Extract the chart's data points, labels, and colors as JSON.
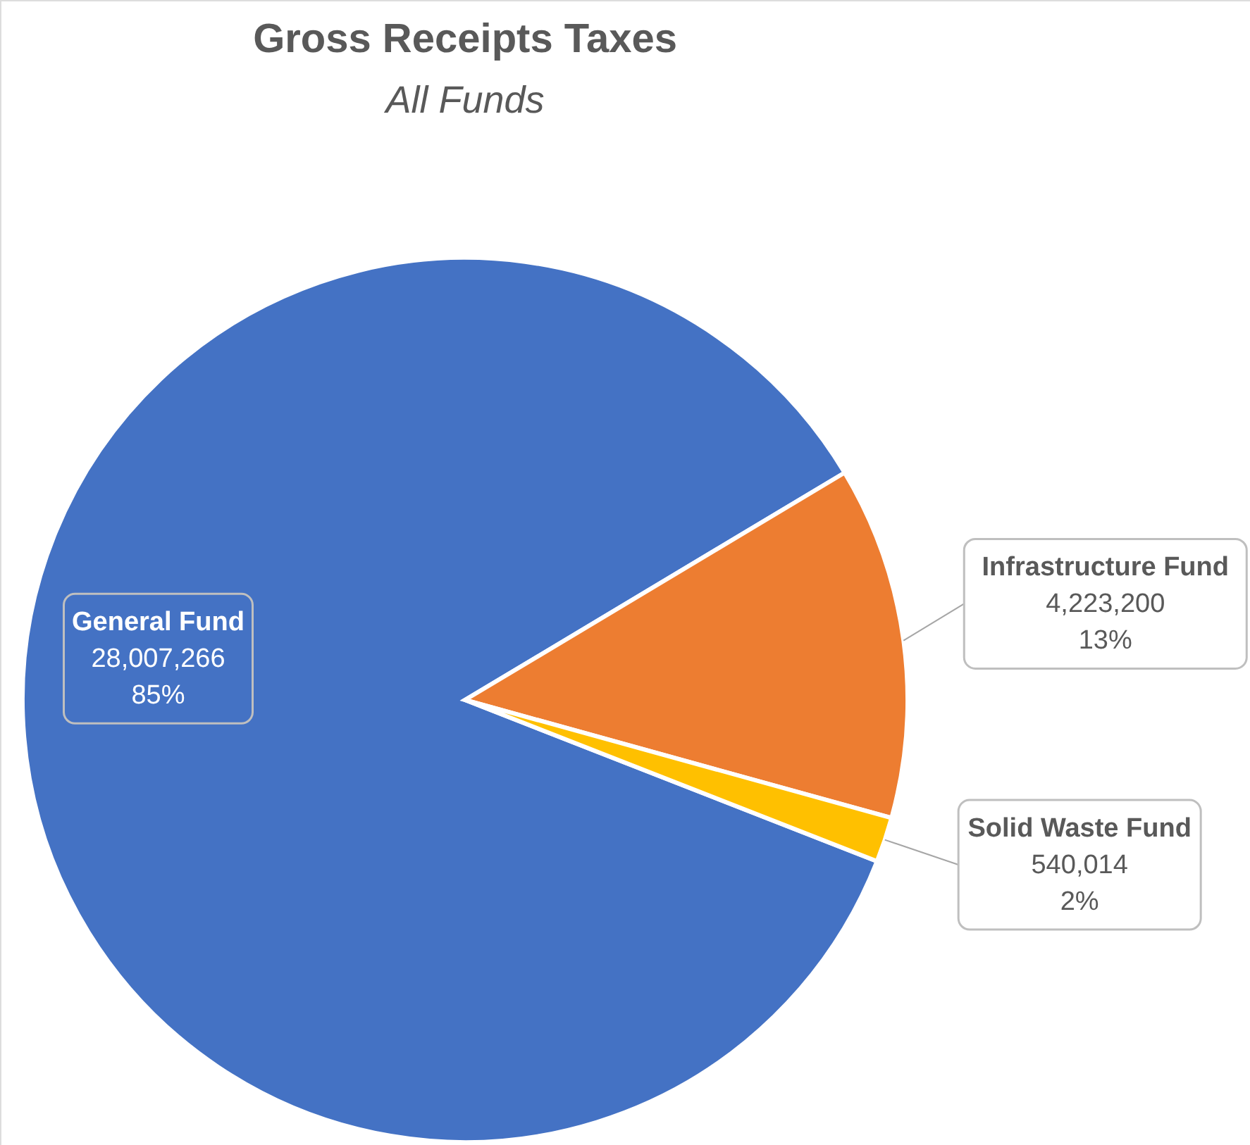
{
  "chart_data": {
    "type": "pie",
    "title": "Gross Receipts Taxes",
    "subtitle": "All Funds",
    "categories": [
      "General Fund",
      "Infrastructure Fund",
      "Solid Waste Fund"
    ],
    "values": [
      28007266,
      4223200,
      540014
    ],
    "colors": [
      "#4472c4",
      "#ed7d31",
      "#ffc000"
    ],
    "value_labels": [
      "28,007,266\n85%",
      "4,223,200\n13%",
      "540,014\n2%"
    ]
  }
}
